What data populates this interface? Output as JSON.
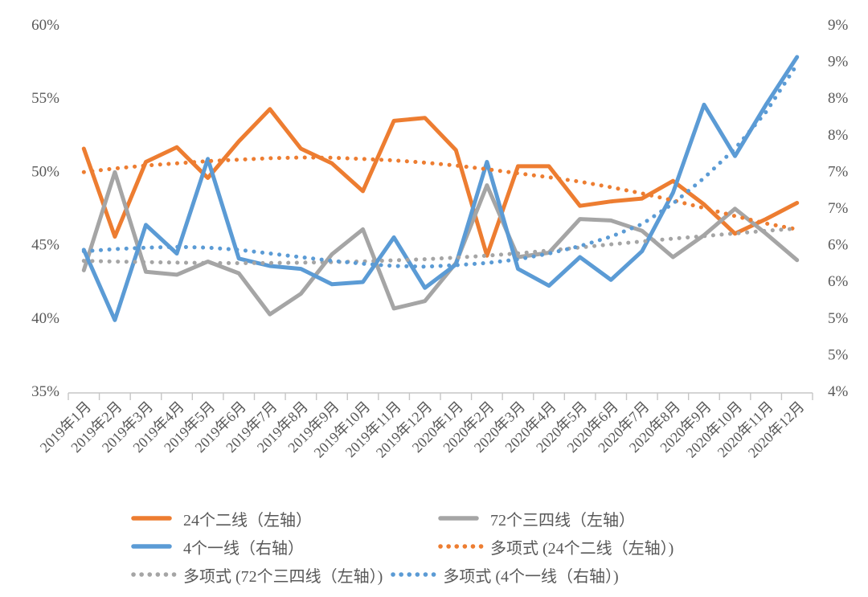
{
  "page": {
    "background": "#ffffff"
  },
  "chart_data": {
    "type": "line",
    "title": "",
    "grid": false,
    "legend_position": "bottom",
    "text_color": "#595959",
    "axis_line_color": "#C6C6C6",
    "categories": [
      "2019年1月",
      "2019年2月",
      "2019年3月",
      "2019年4月",
      "2019年5月",
      "2019年6月",
      "2019年7月",
      "2019年8月",
      "2019年9月",
      "2019年10月",
      "2019年11月",
      "2019年12月",
      "2020年1月",
      "2020年2月",
      "2020年3月",
      "2020年4月",
      "2020年5月",
      "2020年6月",
      "2020年7月",
      "2020年8月",
      "2020年9月",
      "2020年10月",
      "2020年11月",
      "2020年12月"
    ],
    "left_axis": {
      "min": 35,
      "max": 60,
      "ticks": [
        "60%",
        "55%",
        "50%",
        "45%",
        "40%",
        "35%"
      ]
    },
    "right_axis": {
      "min": 4,
      "max": 9,
      "ticks": [
        "9%",
        "9%",
        "8%",
        "8%",
        "7%",
        "7%",
        "6%",
        "6%",
        "5%",
        "5%",
        "4%"
      ]
    },
    "series": [
      {
        "id": "second-tier-24",
        "name": "24个二线（左轴）",
        "axis": "left",
        "color": "#ED7D31",
        "style": "solid",
        "values": [
          51.5,
          45.5,
          50.6,
          51.6,
          49.5,
          52.0,
          54.2,
          51.5,
          50.5,
          48.6,
          53.4,
          53.6,
          51.4,
          44.2,
          50.3,
          50.3,
          47.6,
          47.9,
          48.1,
          49.3,
          47.7,
          45.7,
          46.7,
          47.8
        ]
      },
      {
        "id": "tier34-72",
        "name": "72个三四线（左轴）",
        "axis": "left",
        "color": "#A5A5A5",
        "style": "solid",
        "values": [
          43.2,
          49.9,
          43.1,
          42.9,
          43.8,
          43.0,
          40.2,
          41.6,
          44.3,
          46.0,
          40.6,
          41.1,
          43.7,
          49.0,
          44.1,
          44.4,
          46.7,
          46.6,
          45.9,
          44.1,
          45.6,
          47.4,
          45.7,
          43.9
        ]
      },
      {
        "id": "tier1-4",
        "name": "4个一线（右轴）",
        "axis": "right",
        "color": "#5B9BD5",
        "style": "solid",
        "values": [
          5.92,
          4.96,
          6.26,
          5.87,
          7.16,
          5.8,
          5.7,
          5.66,
          5.45,
          5.48,
          6.09,
          5.4,
          5.72,
          7.12,
          5.66,
          5.43,
          5.82,
          5.51,
          5.9,
          6.7,
          7.9,
          7.2,
          7.9,
          8.55
        ]
      },
      {
        "id": "poly-second-tier-24",
        "name": "多项式 (24个二线（左轴）)",
        "axis": "left",
        "color": "#ED7D31",
        "style": "dotted",
        "values": [
          49.9,
          50.15,
          50.35,
          50.5,
          50.65,
          50.75,
          50.85,
          50.9,
          50.88,
          50.8,
          50.7,
          50.55,
          50.35,
          50.1,
          49.82,
          49.55,
          49.25,
          48.87,
          48.45,
          47.97,
          47.45,
          46.9,
          46.4,
          46.0
        ]
      },
      {
        "id": "poly-tier34-72",
        "name": "多项式 (72个三四线（左轴）)",
        "axis": "left",
        "color": "#A5A5A5",
        "style": "dotted",
        "values": [
          43.85,
          43.8,
          43.76,
          43.73,
          43.7,
          43.69,
          43.7,
          43.72,
          43.76,
          43.81,
          43.88,
          43.96,
          44.07,
          44.2,
          44.36,
          44.55,
          44.76,
          44.97,
          45.17,
          45.36,
          45.54,
          45.72,
          45.9,
          46.05
        ]
      },
      {
        "id": "poly-tier1-4",
        "name": "多项式 (4个一线（右轴）)",
        "axis": "right",
        "color": "#5B9BD5",
        "style": "dotted",
        "values": [
          5.9,
          5.93,
          5.95,
          5.96,
          5.95,
          5.92,
          5.87,
          5.82,
          5.77,
          5.73,
          5.7,
          5.69,
          5.71,
          5.74,
          5.79,
          5.87,
          5.97,
          6.1,
          6.27,
          6.55,
          6.9,
          7.3,
          7.8,
          8.45
        ]
      }
    ]
  },
  "legend": {
    "rows": [
      [
        "second-tier-24",
        "tier34-72"
      ],
      [
        "tier1-4",
        "poly-second-tier-24"
      ],
      [
        "poly-tier34-72",
        "poly-tier1-4"
      ]
    ]
  }
}
